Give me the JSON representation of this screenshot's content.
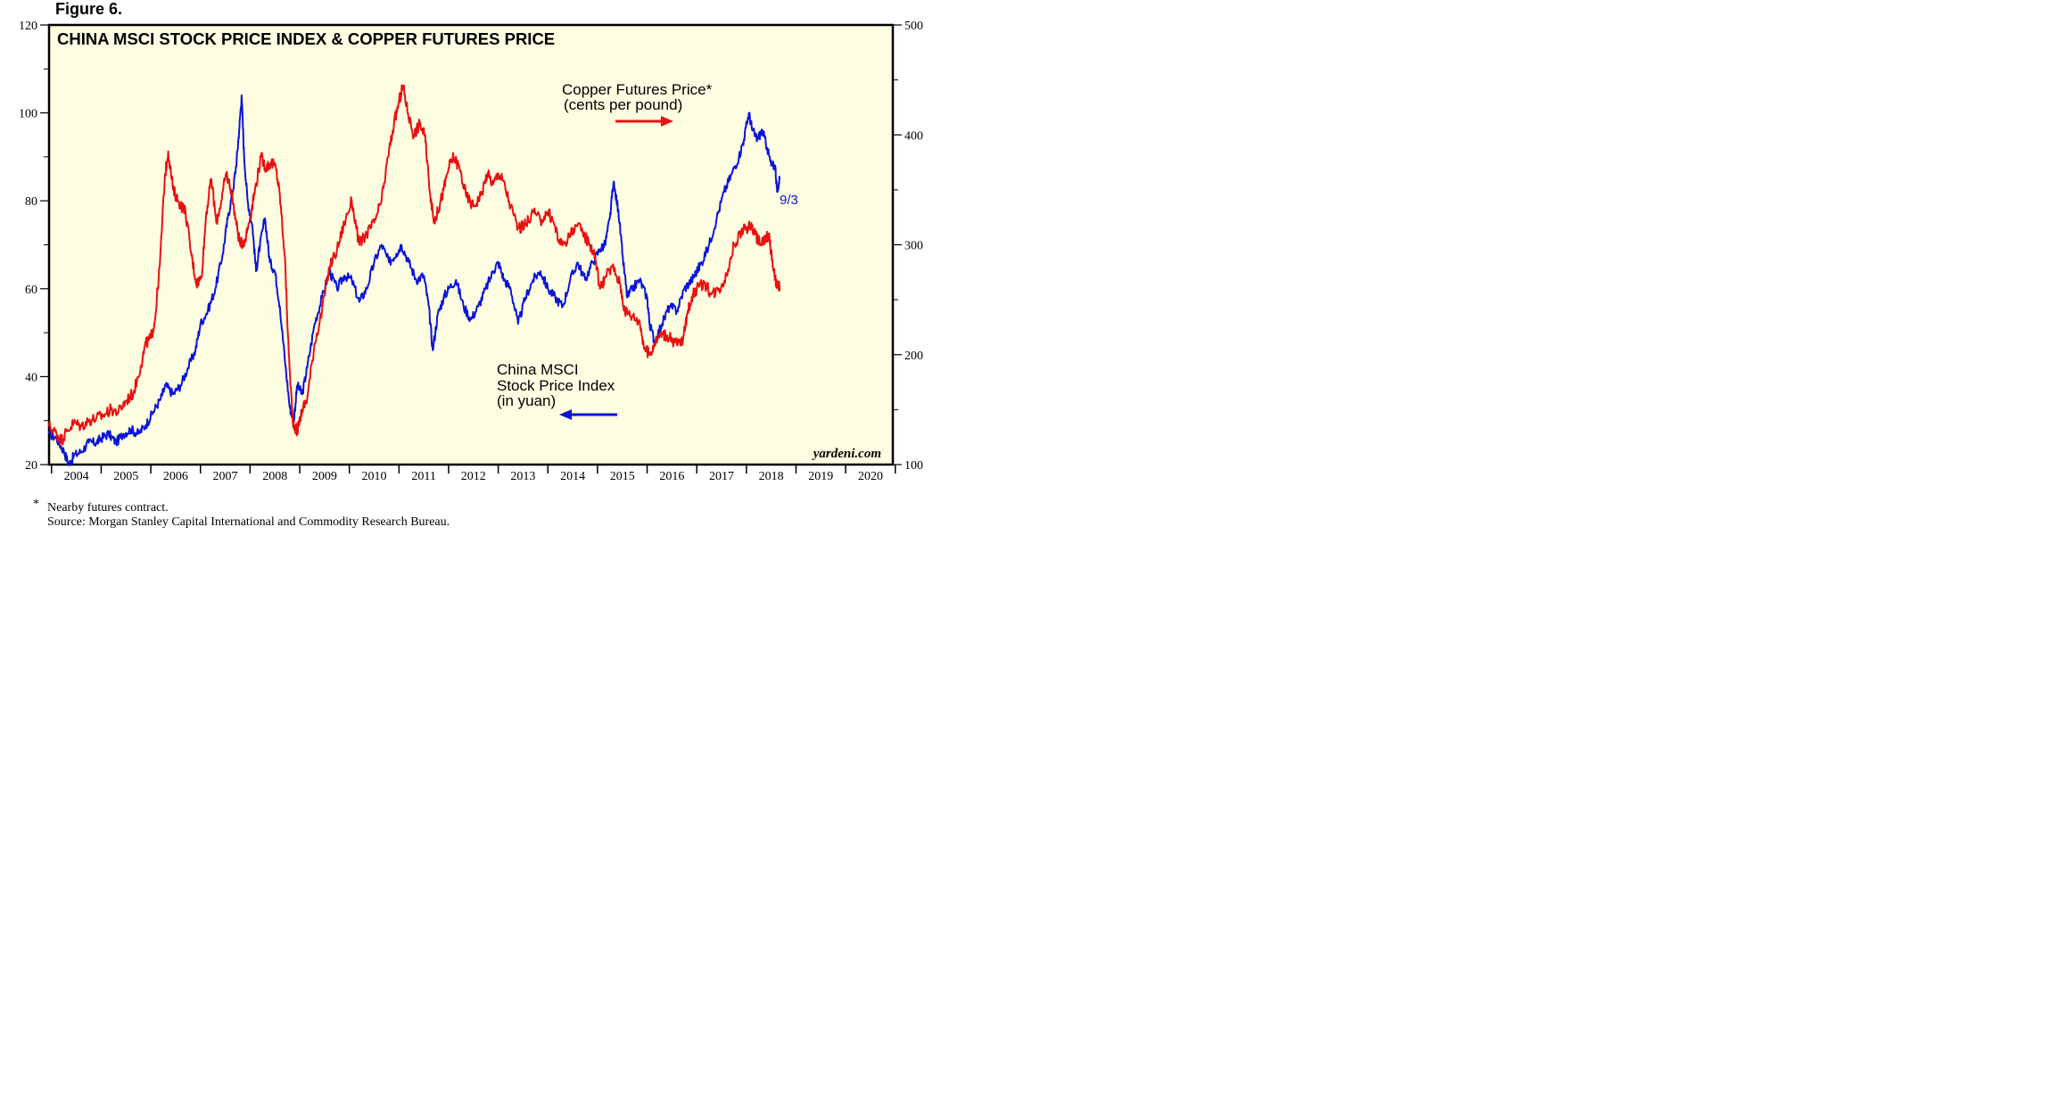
{
  "figure_label": "Figure 6.",
  "footnote_marker": "*",
  "footnote_text": "Nearby futures contract.",
  "source_text": "Source: Morgan Stanley Capital International and Commodity Research Bureau.",
  "chart_data": {
    "type": "line",
    "title": "CHINA MSCI STOCK PRICE INDEX & COPPER FUTURES PRICE",
    "watermark": "yardeni.com",
    "end_label": "9/3",
    "plot_background": "#fdfde1",
    "grid": false,
    "x_axis": {
      "range": [
        2003.95,
        2020.95
      ],
      "tick_labels": [
        "2004",
        "2005",
        "2006",
        "2007",
        "2008",
        "2009",
        "2010",
        "2011",
        "2012",
        "2013",
        "2014",
        "2015",
        "2016",
        "2017",
        "2018",
        "2019",
        "2020"
      ]
    },
    "y_left": {
      "range": [
        20,
        120
      ],
      "tick_labels": [
        "20",
        "40",
        "60",
        "80",
        "100",
        "120"
      ]
    },
    "y_right": {
      "range": [
        100,
        500
      ],
      "tick_labels": [
        "100",
        "200",
        "300",
        "400",
        "500"
      ]
    },
    "series": [
      {
        "name": "China MSCI Stock Price Index",
        "label_lines": [
          "China MSCI",
          "Stock Price Index",
          "(in yuan)"
        ],
        "axis": "left",
        "color": "#0a14d8",
        "arrow": "left",
        "points": [
          [
            2003.95,
            27
          ],
          [
            2004.1,
            26
          ],
          [
            2004.25,
            23
          ],
          [
            2004.35,
            20
          ],
          [
            2004.45,
            22
          ],
          [
            2004.6,
            23
          ],
          [
            2004.75,
            25
          ],
          [
            2004.9,
            25
          ],
          [
            2005.0,
            26
          ],
          [
            2005.15,
            27
          ],
          [
            2005.3,
            25
          ],
          [
            2005.45,
            27
          ],
          [
            2005.6,
            28
          ],
          [
            2005.75,
            27
          ],
          [
            2005.9,
            29
          ],
          [
            2006.05,
            32
          ],
          [
            2006.2,
            35
          ],
          [
            2006.3,
            38
          ],
          [
            2006.45,
            36
          ],
          [
            2006.6,
            38
          ],
          [
            2006.75,
            42
          ],
          [
            2006.9,
            46
          ],
          [
            2007.0,
            52
          ],
          [
            2007.15,
            55
          ],
          [
            2007.3,
            60
          ],
          [
            2007.45,
            68
          ],
          [
            2007.55,
            76
          ],
          [
            2007.65,
            82
          ],
          [
            2007.72,
            88
          ],
          [
            2007.78,
            96
          ],
          [
            2007.83,
            104
          ],
          [
            2007.88,
            90
          ],
          [
            2007.95,
            80
          ],
          [
            2008.05,
            74
          ],
          [
            2008.12,
            64
          ],
          [
            2008.2,
            70
          ],
          [
            2008.3,
            76
          ],
          [
            2008.4,
            66
          ],
          [
            2008.5,
            64
          ],
          [
            2008.6,
            56
          ],
          [
            2008.7,
            44
          ],
          [
            2008.8,
            33
          ],
          [
            2008.88,
            30
          ],
          [
            2008.95,
            38
          ],
          [
            2009.05,
            36
          ],
          [
            2009.15,
            42
          ],
          [
            2009.3,
            52
          ],
          [
            2009.45,
            58
          ],
          [
            2009.6,
            64
          ],
          [
            2009.75,
            60
          ],
          [
            2009.9,
            63
          ],
          [
            2010.05,
            62
          ],
          [
            2010.2,
            57
          ],
          [
            2010.35,
            60
          ],
          [
            2010.5,
            66
          ],
          [
            2010.65,
            70
          ],
          [
            2010.8,
            66
          ],
          [
            2010.95,
            68
          ],
          [
            2011.05,
            70
          ],
          [
            2011.2,
            66
          ],
          [
            2011.35,
            62
          ],
          [
            2011.5,
            63
          ],
          [
            2011.6,
            56
          ],
          [
            2011.68,
            46
          ],
          [
            2011.78,
            54
          ],
          [
            2011.9,
            58
          ],
          [
            2012.0,
            60
          ],
          [
            2012.15,
            62
          ],
          [
            2012.3,
            56
          ],
          [
            2012.45,
            53
          ],
          [
            2012.6,
            56
          ],
          [
            2012.75,
            60
          ],
          [
            2012.9,
            64
          ],
          [
            2013.0,
            66
          ],
          [
            2013.12,
            62
          ],
          [
            2013.25,
            60
          ],
          [
            2013.4,
            52
          ],
          [
            2013.55,
            58
          ],
          [
            2013.7,
            62
          ],
          [
            2013.85,
            64
          ],
          [
            2014.0,
            60
          ],
          [
            2014.15,
            58
          ],
          [
            2014.3,
            56
          ],
          [
            2014.45,
            62
          ],
          [
            2014.6,
            66
          ],
          [
            2014.75,
            62
          ],
          [
            2014.9,
            66
          ],
          [
            2015.05,
            69
          ],
          [
            2015.15,
            70
          ],
          [
            2015.25,
            76
          ],
          [
            2015.32,
            84
          ],
          [
            2015.42,
            78
          ],
          [
            2015.5,
            68
          ],
          [
            2015.6,
            58
          ],
          [
            2015.7,
            60
          ],
          [
            2015.85,
            62
          ],
          [
            2016.0,
            58
          ],
          [
            2016.05,
            52
          ],
          [
            2016.15,
            48
          ],
          [
            2016.3,
            52
          ],
          [
            2016.45,
            56
          ],
          [
            2016.6,
            55
          ],
          [
            2016.75,
            60
          ],
          [
            2016.9,
            62
          ],
          [
            2017.0,
            64
          ],
          [
            2017.1,
            66
          ],
          [
            2017.25,
            70
          ],
          [
            2017.4,
            76
          ],
          [
            2017.55,
            82
          ],
          [
            2017.7,
            86
          ],
          [
            2017.85,
            90
          ],
          [
            2017.95,
            94
          ],
          [
            2018.05,
            100
          ],
          [
            2018.12,
            96
          ],
          [
            2018.22,
            94
          ],
          [
            2018.32,
            96
          ],
          [
            2018.42,
            92
          ],
          [
            2018.5,
            88
          ],
          [
            2018.58,
            88
          ],
          [
            2018.62,
            82
          ],
          [
            2018.67,
            85
          ]
        ]
      },
      {
        "name": "Copper Futures Price",
        "label_lines": [
          "Copper Futures Price*",
          "(cents per pound)"
        ],
        "axis": "right",
        "color": "#e81010",
        "arrow": "right",
        "points": [
          [
            2003.95,
            135
          ],
          [
            2004.1,
            128
          ],
          [
            2004.2,
            122
          ],
          [
            2004.3,
            130
          ],
          [
            2004.45,
            138
          ],
          [
            2004.6,
            135
          ],
          [
            2004.75,
            140
          ],
          [
            2004.9,
            142
          ],
          [
            2005.05,
            145
          ],
          [
            2005.2,
            150
          ],
          [
            2005.35,
            148
          ],
          [
            2005.5,
            158
          ],
          [
            2005.65,
            165
          ],
          [
            2005.8,
            190
          ],
          [
            2005.9,
            210
          ],
          [
            2006.0,
            215
          ],
          [
            2006.08,
            230
          ],
          [
            2006.18,
            280
          ],
          [
            2006.28,
            360
          ],
          [
            2006.35,
            385
          ],
          [
            2006.45,
            350
          ],
          [
            2006.55,
            340
          ],
          [
            2006.7,
            330
          ],
          [
            2006.82,
            290
          ],
          [
            2006.92,
            265
          ],
          [
            2007.02,
            270
          ],
          [
            2007.12,
            330
          ],
          [
            2007.22,
            360
          ],
          [
            2007.32,
            320
          ],
          [
            2007.42,
            340
          ],
          [
            2007.52,
            365
          ],
          [
            2007.62,
            350
          ],
          [
            2007.72,
            320
          ],
          [
            2007.8,
            300
          ],
          [
            2007.9,
            305
          ],
          [
            2008.0,
            325
          ],
          [
            2008.1,
            350
          ],
          [
            2008.22,
            380
          ],
          [
            2008.32,
            370
          ],
          [
            2008.42,
            375
          ],
          [
            2008.52,
            370
          ],
          [
            2008.6,
            345
          ],
          [
            2008.7,
            290
          ],
          [
            2008.78,
            200
          ],
          [
            2008.86,
            140
          ],
          [
            2008.95,
            130
          ],
          [
            2009.05,
            150
          ],
          [
            2009.15,
            160
          ],
          [
            2009.3,
            210
          ],
          [
            2009.45,
            240
          ],
          [
            2009.6,
            280
          ],
          [
            2009.75,
            295
          ],
          [
            2009.9,
            320
          ],
          [
            2010.05,
            340
          ],
          [
            2010.2,
            300
          ],
          [
            2010.35,
            310
          ],
          [
            2010.5,
            320
          ],
          [
            2010.65,
            340
          ],
          [
            2010.78,
            380
          ],
          [
            2010.9,
            410
          ],
          [
            2011.0,
            430
          ],
          [
            2011.08,
            445
          ],
          [
            2011.18,
            420
          ],
          [
            2011.3,
            400
          ],
          [
            2011.42,
            410
          ],
          [
            2011.52,
            400
          ],
          [
            2011.6,
            360
          ],
          [
            2011.7,
            320
          ],
          [
            2011.78,
            330
          ],
          [
            2011.9,
            350
          ],
          [
            2012.0,
            370
          ],
          [
            2012.1,
            380
          ],
          [
            2012.22,
            370
          ],
          [
            2012.35,
            345
          ],
          [
            2012.5,
            335
          ],
          [
            2012.65,
            345
          ],
          [
            2012.78,
            365
          ],
          [
            2012.9,
            355
          ],
          [
            2013.0,
            365
          ],
          [
            2013.1,
            358
          ],
          [
            2013.25,
            335
          ],
          [
            2013.4,
            315
          ],
          [
            2013.55,
            318
          ],
          [
            2013.7,
            330
          ],
          [
            2013.85,
            322
          ],
          [
            2014.0,
            330
          ],
          [
            2014.12,
            320
          ],
          [
            2014.25,
            300
          ],
          [
            2014.4,
            305
          ],
          [
            2014.55,
            318
          ],
          [
            2014.7,
            312
          ],
          [
            2014.85,
            300
          ],
          [
            2014.95,
            290
          ],
          [
            2015.05,
            260
          ],
          [
            2015.15,
            270
          ],
          [
            2015.3,
            280
          ],
          [
            2015.45,
            265
          ],
          [
            2015.55,
            240
          ],
          [
            2015.7,
            235
          ],
          [
            2015.85,
            230
          ],
          [
            2015.95,
            205
          ],
          [
            2016.05,
            200
          ],
          [
            2016.15,
            210
          ],
          [
            2016.3,
            220
          ],
          [
            2016.45,
            215
          ],
          [
            2016.6,
            210
          ],
          [
            2016.72,
            212
          ],
          [
            2016.82,
            240
          ],
          [
            2016.92,
            255
          ],
          [
            2017.0,
            260
          ],
          [
            2017.15,
            265
          ],
          [
            2017.3,
            255
          ],
          [
            2017.45,
            260
          ],
          [
            2017.6,
            272
          ],
          [
            2017.75,
            300
          ],
          [
            2017.9,
            312
          ],
          [
            2018.0,
            315
          ],
          [
            2018.08,
            318
          ],
          [
            2018.18,
            310
          ],
          [
            2018.28,
            300
          ],
          [
            2018.38,
            305
          ],
          [
            2018.45,
            310
          ],
          [
            2018.52,
            285
          ],
          [
            2018.58,
            268
          ],
          [
            2018.64,
            260
          ],
          [
            2018.67,
            262
          ]
        ]
      }
    ]
  }
}
